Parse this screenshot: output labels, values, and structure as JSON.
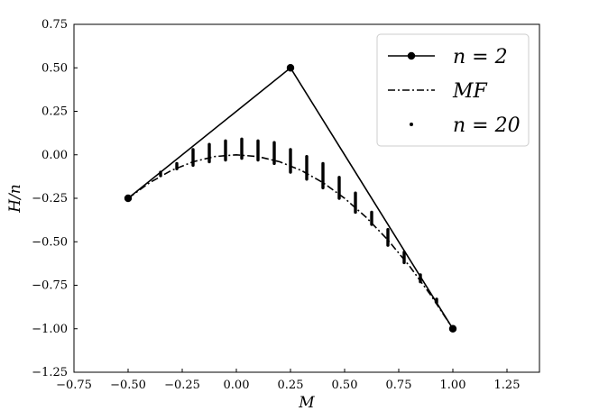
{
  "chart_data": {
    "type": "line",
    "xlabel": "M",
    "ylabel": "H/n",
    "xlim": [
      -0.75,
      1.4
    ],
    "ylim": [
      -1.25,
      0.75
    ],
    "xticks": [
      -0.75,
      -0.5,
      -0.25,
      0.0,
      0.25,
      0.5,
      0.75,
      1.0,
      1.25
    ],
    "yticks": [
      -1.25,
      -1.0,
      -0.75,
      -0.5,
      -0.25,
      0.0,
      0.25,
      0.5,
      0.75
    ],
    "xtick_labels": [
      "−0.75",
      "−0.50",
      "−0.25",
      "0.00",
      "0.25",
      "0.50",
      "0.75",
      "1.00",
      "1.25"
    ],
    "ytick_labels": [
      "−1.25",
      "−1.00",
      "−0.75",
      "−0.50",
      "−0.25",
      "0.00",
      "0.25",
      "0.50",
      "0.75"
    ],
    "legend_position": "top-right",
    "grid": false,
    "series": [
      {
        "name": "n = 2",
        "style": "solid-with-markers",
        "color": "#000000",
        "points": [
          [
            -0.5,
            -0.25
          ],
          [
            0.25,
            0.5
          ],
          [
            1.0,
            -1.0
          ]
        ]
      },
      {
        "name": "MF",
        "style": "dash-dot",
        "color": "#000000",
        "points": [
          [
            -0.5,
            -0.25
          ],
          [
            -0.4,
            -0.16
          ],
          [
            -0.3,
            -0.09
          ],
          [
            -0.2,
            -0.04
          ],
          [
            -0.1,
            -0.01
          ],
          [
            0.0,
            0.0
          ],
          [
            0.1,
            -0.01
          ],
          [
            0.2,
            -0.04
          ],
          [
            0.3,
            -0.09
          ],
          [
            0.4,
            -0.16
          ],
          [
            0.5,
            -0.25
          ],
          [
            0.6,
            -0.36
          ],
          [
            0.7,
            -0.49
          ],
          [
            0.8,
            -0.64
          ],
          [
            0.9,
            -0.81
          ],
          [
            1.0,
            -1.0
          ]
        ]
      },
      {
        "name": "n = 20",
        "style": "points",
        "color": "#000000",
        "columns": [
          {
            "x": -0.35,
            "ymin": -0.12,
            "ymax": -0.1
          },
          {
            "x": -0.275,
            "ymin": -0.08,
            "ymax": -0.05
          },
          {
            "x": -0.2,
            "ymin": -0.06,
            "ymax": 0.03
          },
          {
            "x": -0.125,
            "ymin": -0.04,
            "ymax": 0.06
          },
          {
            "x": -0.05,
            "ymin": -0.03,
            "ymax": 0.08
          },
          {
            "x": 0.025,
            "ymin": -0.02,
            "ymax": 0.09
          },
          {
            "x": 0.1,
            "ymin": -0.03,
            "ymax": 0.08
          },
          {
            "x": 0.175,
            "ymin": -0.05,
            "ymax": 0.07
          },
          {
            "x": 0.25,
            "ymin": -0.1,
            "ymax": 0.03
          },
          {
            "x": 0.325,
            "ymin": -0.14,
            "ymax": -0.01
          },
          {
            "x": 0.4,
            "ymin": -0.19,
            "ymax": -0.05
          },
          {
            "x": 0.475,
            "ymin": -0.25,
            "ymax": -0.13
          },
          {
            "x": 0.55,
            "ymin": -0.33,
            "ymax": -0.22
          },
          {
            "x": 0.625,
            "ymin": -0.4,
            "ymax": -0.33
          },
          {
            "x": 0.7,
            "ymin": -0.52,
            "ymax": -0.43
          },
          {
            "x": 0.775,
            "ymin": -0.62,
            "ymax": -0.56
          },
          {
            "x": 0.85,
            "ymin": -0.73,
            "ymax": -0.69
          },
          {
            "x": 0.925,
            "ymin": -0.85,
            "ymax": -0.83
          }
        ]
      }
    ]
  }
}
